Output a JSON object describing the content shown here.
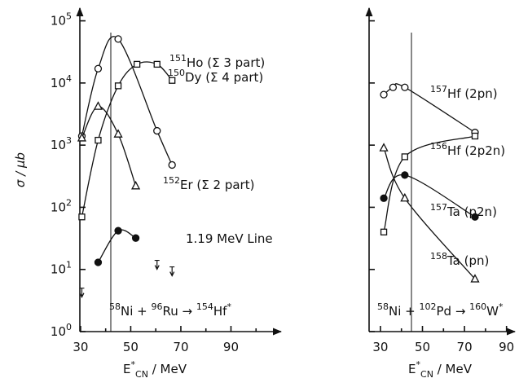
{
  "chart_data": [
    {
      "type": "scatter",
      "log_y": true,
      "ylabel": [
        {
          "text": "σ / μb"
        }
      ],
      "xlabel": [
        {
          "text": "E"
        },
        {
          "text": "*",
          "pos": "sup"
        },
        {
          "text": "CN",
          "pos": "sub"
        },
        {
          "text": " / MeV"
        }
      ],
      "annotation": [
        {
          "text": "58",
          "pos": "sup"
        },
        {
          "text": "Ni + "
        },
        {
          "text": "96",
          "pos": "sup"
        },
        {
          "text": "Ru → "
        },
        {
          "text": "154",
          "pos": "sup"
        },
        {
          "text": "Hf"
        },
        {
          "text": "*",
          "pos": "sup"
        }
      ],
      "xlim": [
        29.7,
        110
      ],
      "xticks": [
        30,
        50,
        70,
        90
      ],
      "xminorticks": [
        40,
        60,
        80,
        100
      ],
      "ylim": [
        1,
        160000
      ],
      "yticks": [
        {
          "value": 1,
          "label": "10",
          "exponent": "0"
        },
        {
          "value": 10,
          "label": "10",
          "exponent": "1"
        },
        {
          "value": 100,
          "label": "10",
          "exponent": "2"
        },
        {
          "value": 1000,
          "label": "10",
          "exponent": "3"
        },
        {
          "value": 10000,
          "label": "10",
          "exponent": "4"
        },
        {
          "value": 100000,
          "label": "10",
          "exponent": "5"
        }
      ],
      "series": [
        {
          "mass": "151",
          "name": "Ho (Σ 3 part)",
          "marker": "circle",
          "color": "#111",
          "x": [
            30.5,
            37,
            45,
            60.5,
            66.5
          ],
          "values": [
            1400,
            17000,
            51000,
            1700,
            480
          ]
        },
        {
          "mass": "150",
          "name": "Dy (Σ 4 part)",
          "marker": "square",
          "color": "#111",
          "x": [
            30.5,
            37,
            45,
            52.5,
            60.5,
            66.5
          ],
          "values": [
            70,
            1200,
            9000,
            20000,
            20000,
            11000
          ]
        },
        {
          "mass": "152",
          "name": "Er (Σ 2 part)",
          "marker": "triangle",
          "color": "#111",
          "x": [
            30.5,
            37,
            45,
            52
          ],
          "values": [
            1300,
            4200,
            1500,
            220
          ]
        },
        {
          "name": "1.19 MeV Line",
          "marker": "filled-circle",
          "color": "#111",
          "x": [
            37,
            45,
            52
          ],
          "values": [
            13,
            42,
            32
          ],
          "upper_limit_x": [
            30.5,
            60.5,
            66.5
          ],
          "upper_limits": [
            5,
            14,
            11
          ]
        }
      ]
    },
    {
      "type": "scatter",
      "log_y": true,
      "xlabel": [
        {
          "text": "E"
        },
        {
          "text": "*",
          "pos": "sup"
        },
        {
          "text": "CN",
          "pos": "sub"
        },
        {
          "text": " / MeV"
        }
      ],
      "annotation": [
        {
          "text": "58",
          "pos": "sup"
        },
        {
          "text": "Ni + "
        },
        {
          "text": "102",
          "pos": "sup"
        },
        {
          "text": "Pd → "
        },
        {
          "text": "160",
          "pos": "sup"
        },
        {
          "text": "W"
        },
        {
          "text": "*",
          "pos": "sup"
        }
      ],
      "xlim": [
        24.6,
        94
      ],
      "xticks": [
        30,
        50,
        70,
        90
      ],
      "xminorticks": [
        40,
        60,
        80
      ],
      "ylim": [
        1,
        160000
      ],
      "yticks": [
        1,
        10,
        100,
        1000,
        10000,
        100000
      ],
      "series": [
        {
          "mass": "157",
          "name": "Hf (2pn)",
          "marker": "circle",
          "color": "#111",
          "x": [
            31.6,
            36,
            41.6,
            75
          ],
          "values": [
            6500,
            8500,
            8500,
            1600
          ]
        },
        {
          "mass": "156",
          "name": "Hf (2p2n)",
          "marker": "square",
          "color": "#111",
          "x": [
            31.6,
            41.6,
            75
          ],
          "values": [
            40,
            650,
            1400
          ]
        },
        {
          "mass": "157",
          "name": "Ta (p2n)",
          "marker": "filled-circle",
          "color": "#111",
          "x": [
            31.6,
            41.6,
            75
          ],
          "values": [
            140,
            330,
            70
          ]
        },
        {
          "mass": "158",
          "name": "Ta (pn)",
          "marker": "triangle",
          "color": "#111",
          "x": [
            31.6,
            41.6,
            75
          ],
          "values": [
            900,
            140,
            7
          ]
        }
      ]
    }
  ]
}
